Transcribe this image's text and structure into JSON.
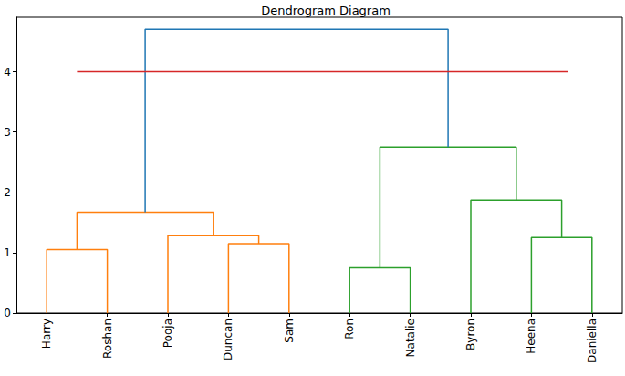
{
  "chart_data": {
    "type": "dendrogram",
    "title": "Dendrogram Diagram",
    "xlim": [
      0,
      100
    ],
    "xticks": [
      {
        "value": 5,
        "label": "Harry"
      },
      {
        "value": 15,
        "label": "Roshan"
      },
      {
        "value": 25,
        "label": "Pooja"
      },
      {
        "value": 35,
        "label": "Duncan"
      },
      {
        "value": 45,
        "label": "Sam"
      },
      {
        "value": 55,
        "label": "Ron"
      },
      {
        "value": 65,
        "label": "Natalie"
      },
      {
        "value": 75,
        "label": "Byron"
      },
      {
        "value": 85,
        "label": "Heena"
      },
      {
        "value": 95,
        "label": "Daniella"
      }
    ],
    "ylim": [
      0,
      4.9
    ],
    "yticks": [
      0,
      1,
      2,
      3,
      4
    ],
    "grid": false,
    "links": [
      {
        "x": [
          5,
          5,
          15,
          15
        ],
        "y": [
          0,
          1.05,
          1.05,
          0
        ],
        "color": "#ff7f0e"
      },
      {
        "x": [
          35,
          35,
          45,
          45
        ],
        "y": [
          0,
          1.15,
          1.15,
          0
        ],
        "color": "#ff7f0e"
      },
      {
        "x": [
          25,
          25,
          40,
          40
        ],
        "y": [
          0,
          1.28,
          1.28,
          1.15
        ],
        "color": "#ff7f0e"
      },
      {
        "x": [
          10,
          10,
          32.5,
          32.5
        ],
        "y": [
          1.05,
          1.67,
          1.67,
          1.28
        ],
        "color": "#ff7f0e"
      },
      {
        "x": [
          55,
          55,
          65,
          65
        ],
        "y": [
          0,
          0.75,
          0.75,
          0
        ],
        "color": "#2ca02c"
      },
      {
        "x": [
          85,
          85,
          95,
          95
        ],
        "y": [
          0,
          1.25,
          1.25,
          0
        ],
        "color": "#2ca02c"
      },
      {
        "x": [
          75,
          75,
          90,
          90
        ],
        "y": [
          0,
          1.87,
          1.87,
          1.25
        ],
        "color": "#2ca02c"
      },
      {
        "x": [
          60,
          60,
          82.5,
          82.5
        ],
        "y": [
          0.75,
          2.75,
          2.75,
          1.87
        ],
        "color": "#2ca02c"
      },
      {
        "x": [
          21.25,
          21.25,
          71.25,
          71.25
        ],
        "y": [
          1.67,
          4.7,
          4.7,
          2.75
        ],
        "color": "#1f77b4"
      }
    ],
    "threshold": {
      "y": 4,
      "x": [
        10,
        91
      ],
      "color": "#d62728"
    }
  }
}
